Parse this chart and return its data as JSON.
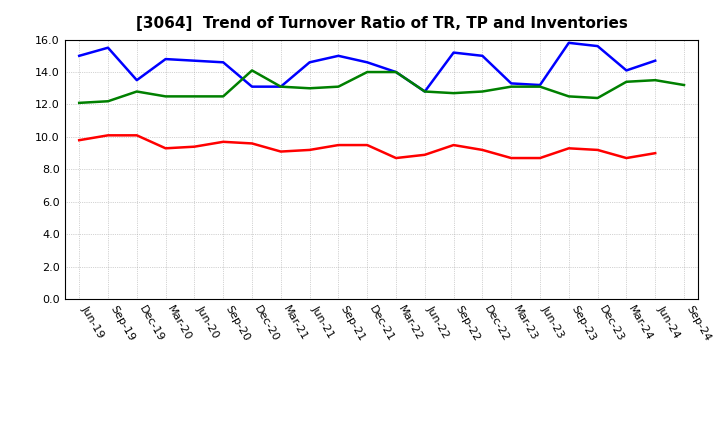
{
  "title": "[3064]  Trend of Turnover Ratio of TR, TP and Inventories",
  "labels": [
    "Jun-19",
    "Sep-19",
    "Dec-19",
    "Mar-20",
    "Jun-20",
    "Sep-20",
    "Dec-20",
    "Mar-21",
    "Jun-21",
    "Sep-21",
    "Dec-21",
    "Mar-22",
    "Jun-22",
    "Sep-22",
    "Dec-22",
    "Mar-23",
    "Jun-23",
    "Sep-23",
    "Dec-23",
    "Mar-24",
    "Jun-24",
    "Sep-24"
  ],
  "trade_receivables": [
    9.8,
    10.1,
    10.1,
    9.3,
    9.4,
    9.7,
    9.6,
    9.1,
    9.2,
    9.5,
    9.5,
    8.7,
    8.9,
    9.5,
    9.2,
    8.7,
    8.7,
    9.3,
    9.2,
    8.7,
    9.0,
    null
  ],
  "trade_payables": [
    15.0,
    15.5,
    13.5,
    14.8,
    14.7,
    14.6,
    13.1,
    13.1,
    14.6,
    15.0,
    14.6,
    14.0,
    12.8,
    15.2,
    15.0,
    13.3,
    13.2,
    15.8,
    15.6,
    14.1,
    14.7,
    null
  ],
  "inventories": [
    12.1,
    12.2,
    12.8,
    12.5,
    12.5,
    12.5,
    14.1,
    13.1,
    13.0,
    13.1,
    14.0,
    14.0,
    12.8,
    12.7,
    12.8,
    13.1,
    13.1,
    12.5,
    12.4,
    13.4,
    13.5,
    13.2
  ],
  "trade_receivables_color": "#ff0000",
  "trade_payables_color": "#0000ff",
  "inventories_color": "#008000",
  "ylim": [
    0.0,
    16.0
  ],
  "yticks": [
    0.0,
    2.0,
    4.0,
    6.0,
    8.0,
    10.0,
    12.0,
    14.0,
    16.0
  ],
  "background_color": "#ffffff",
  "linewidth": 1.8,
  "title_fontsize": 11,
  "tick_fontsize": 8,
  "legend_fontsize": 9
}
